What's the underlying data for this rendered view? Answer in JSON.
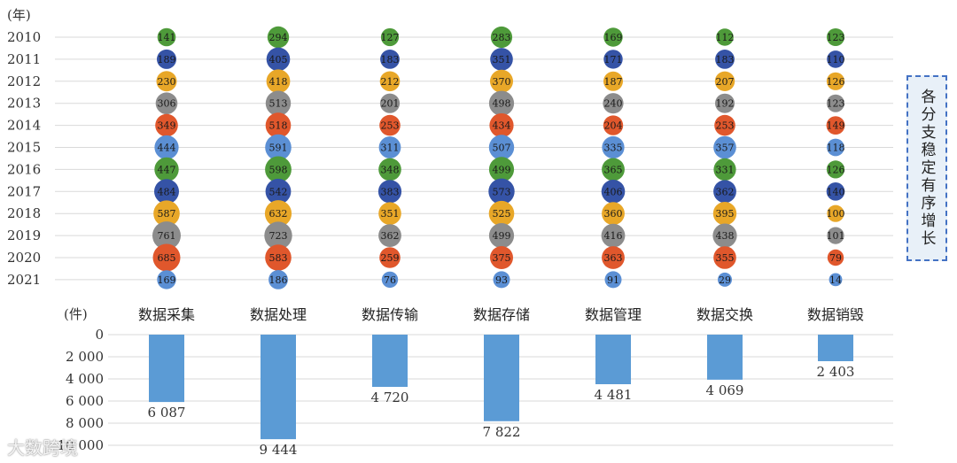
{
  "colors": {
    "green": "#4e9a3a",
    "navy": "#3553a6",
    "gold": "#e8a728",
    "gray": "#8c8c8c",
    "orange": "#e0572c",
    "lightblue": "#5b8fd4",
    "bar": "#5b9bd5",
    "grid": "#d9d9d9"
  },
  "chart_data": [
    {
      "type": "bubble",
      "ylabel": "(年)",
      "years": [
        "2010",
        "2011",
        "2012",
        "2013",
        "2014",
        "2015",
        "2016",
        "2017",
        "2018",
        "2019",
        "2020",
        "2021"
      ],
      "year_colors": [
        "green",
        "navy",
        "gold",
        "gray",
        "orange",
        "lightblue",
        "green",
        "navy",
        "gold",
        "gray",
        "orange",
        "lightblue"
      ],
      "categories": [
        "数据采集",
        "数据处理",
        "数据传输",
        "数据存储",
        "数据管理",
        "数据交换",
        "数据销毁"
      ],
      "series": [
        {
          "name": "数据采集",
          "values": [
            141,
            189,
            230,
            306,
            349,
            444,
            447,
            484,
            587,
            761,
            685,
            169
          ]
        },
        {
          "name": "数据处理",
          "values": [
            294,
            405,
            418,
            513,
            518,
            591,
            598,
            542,
            632,
            723,
            583,
            186
          ]
        },
        {
          "name": "数据传输",
          "values": [
            127,
            183,
            212,
            201,
            253,
            311,
            348,
            383,
            351,
            362,
            259,
            76
          ]
        },
        {
          "name": "数据存储",
          "values": [
            283,
            351,
            370,
            498,
            434,
            507,
            499,
            573,
            525,
            499,
            375,
            93
          ]
        },
        {
          "name": "数据管理",
          "values": [
            169,
            171,
            187,
            240,
            204,
            335,
            365,
            406,
            360,
            416,
            363,
            91
          ]
        },
        {
          "name": "数据交换",
          "values": [
            112,
            183,
            207,
            192,
            253,
            357,
            331,
            362,
            395,
            438,
            355,
            29
          ]
        },
        {
          "name": "数据销毁",
          "values": [
            123,
            110,
            126,
            123,
            149,
            118,
            126,
            140,
            100,
            101,
            79,
            14
          ]
        }
      ]
    },
    {
      "type": "bar",
      "ylabel": "(件)",
      "categories": [
        "数据采集",
        "数据处理",
        "数据传输",
        "数据存储",
        "数据管理",
        "数据交换",
        "数据销毁"
      ],
      "values": [
        6087,
        9444,
        4720,
        7822,
        4481,
        4069,
        2403
      ],
      "value_labels": [
        "6 087",
        "9 444",
        "4 720",
        "7 822",
        "4 481",
        "4 069",
        "2 403"
      ],
      "ylim": [
        0,
        10000
      ],
      "ytick_values": [
        0,
        2000,
        4000,
        6000,
        8000,
        10000
      ],
      "ytick_labels": [
        "0",
        "2 000",
        "4 000",
        "6 000",
        "8 000",
        "10 000"
      ]
    }
  ],
  "side_note": "各分支稳定有序增长",
  "watermark": "大数跨境"
}
